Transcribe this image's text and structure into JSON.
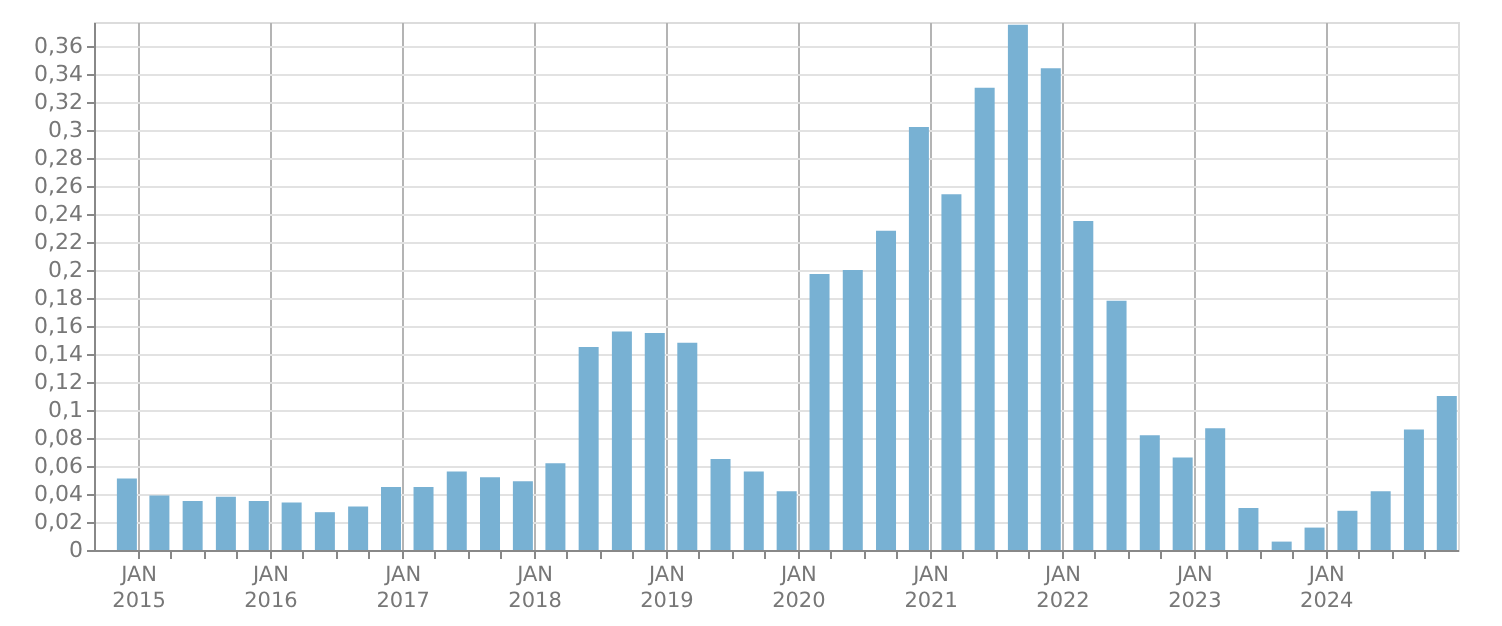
{
  "chart_data": {
    "type": "bar",
    "x": [
      "2014-12",
      "2015-03",
      "2015-06",
      "2015-09",
      "2015-12",
      "2016-03",
      "2016-06",
      "2016-09",
      "2016-12",
      "2017-03",
      "2017-06",
      "2017-09",
      "2017-12",
      "2018-03",
      "2018-06",
      "2018-09",
      "2018-12",
      "2019-03",
      "2019-06",
      "2019-09",
      "2019-12",
      "2020-03",
      "2020-06",
      "2020-09",
      "2020-12",
      "2021-03",
      "2021-06",
      "2021-09",
      "2021-12",
      "2022-03",
      "2022-06",
      "2022-09",
      "2022-12",
      "2023-03",
      "2023-06",
      "2023-09",
      "2023-12",
      "2024-03",
      "2024-06",
      "2024-09",
      "2024-12"
    ],
    "values": [
      0.051,
      0.039,
      0.035,
      0.038,
      0.035,
      0.034,
      0.027,
      0.031,
      0.045,
      0.045,
      0.056,
      0.052,
      0.049,
      0.062,
      0.145,
      0.156,
      0.155,
      0.148,
      0.065,
      0.056,
      0.042,
      0.197,
      0.2,
      0.228,
      0.302,
      0.254,
      0.33,
      0.375,
      0.344,
      0.235,
      0.178,
      0.082,
      0.066,
      0.087,
      0.03,
      0.006,
      0.016,
      0.028,
      0.042,
      0.086,
      0.11
    ],
    "color": "#78b1d3",
    "xlim": [
      "2014-09",
      "2025-01"
    ],
    "xticks": [
      {
        "value": "2015-01",
        "label": "JAN 2015"
      },
      {
        "value": "2015-04",
        "label": null
      },
      {
        "value": "2015-07",
        "label": null
      },
      {
        "value": "2015-10",
        "label": null
      },
      {
        "value": "2016-01",
        "label": "JAN 2016"
      },
      {
        "value": "2016-04",
        "label": null
      },
      {
        "value": "2016-07",
        "label": null
      },
      {
        "value": "2016-10",
        "label": null
      },
      {
        "value": "2017-01",
        "label": "JAN 2017"
      },
      {
        "value": "2017-04",
        "label": null
      },
      {
        "value": "2017-07",
        "label": null
      },
      {
        "value": "2017-10",
        "label": null
      },
      {
        "value": "2018-01",
        "label": "JAN 2018"
      },
      {
        "value": "2018-04",
        "label": null
      },
      {
        "value": "2018-07",
        "label": null
      },
      {
        "value": "2018-10",
        "label": null
      },
      {
        "value": "2019-01",
        "label": "JAN 2019"
      },
      {
        "value": "2019-04",
        "label": null
      },
      {
        "value": "2019-07",
        "label": null
      },
      {
        "value": "2019-10",
        "label": null
      },
      {
        "value": "2020-01",
        "label": "JAN 2020"
      },
      {
        "value": "2020-04",
        "label": null
      },
      {
        "value": "2020-07",
        "label": null
      },
      {
        "value": "2020-10",
        "label": null
      },
      {
        "value": "2021-01",
        "label": "JAN 2021"
      },
      {
        "value": "2021-04",
        "label": null
      },
      {
        "value": "2021-07",
        "label": null
      },
      {
        "value": "2021-10",
        "label": null
      },
      {
        "value": "2022-01",
        "label": "JAN 2022"
      },
      {
        "value": "2022-04",
        "label": null
      },
      {
        "value": "2022-07",
        "label": null
      },
      {
        "value": "2022-10",
        "label": null
      },
      {
        "value": "2023-01",
        "label": "JAN 2023"
      },
      {
        "value": "2023-04",
        "label": null
      },
      {
        "value": "2023-07",
        "label": null
      },
      {
        "value": "2023-10",
        "label": null
      },
      {
        "value": "2024-01",
        "label": "JAN 2024"
      },
      {
        "value": "2024-04",
        "label": null
      },
      {
        "value": "2024-07",
        "label": null
      },
      {
        "value": "2024-10",
        "label": null
      }
    ],
    "ylim": [
      0,
      0.377
    ],
    "yticks": [
      {
        "value": 0,
        "label": "0"
      },
      {
        "value": 0.02,
        "label": "0,02"
      },
      {
        "value": 0.04,
        "label": "0,04"
      },
      {
        "value": 0.06,
        "label": "0,06"
      },
      {
        "value": 0.08,
        "label": "0,08"
      },
      {
        "value": 0.1,
        "label": "0,1"
      },
      {
        "value": 0.12,
        "label": "0,12"
      },
      {
        "value": 0.14,
        "label": "0,14"
      },
      {
        "value": 0.16,
        "label": "0,16"
      },
      {
        "value": 0.18,
        "label": "0,18"
      },
      {
        "value": 0.2,
        "label": "0,2"
      },
      {
        "value": 0.22,
        "label": "0,22"
      },
      {
        "value": 0.24,
        "label": "0,24"
      },
      {
        "value": 0.26,
        "label": "0,26"
      },
      {
        "value": 0.28,
        "label": "0,28"
      },
      {
        "value": 0.3,
        "label": "0,3"
      },
      {
        "value": 0.32,
        "label": "0,32"
      },
      {
        "value": 0.34,
        "label": "0,34"
      },
      {
        "value": 0.36,
        "label": "0,36"
      }
    ],
    "grid": true
  }
}
